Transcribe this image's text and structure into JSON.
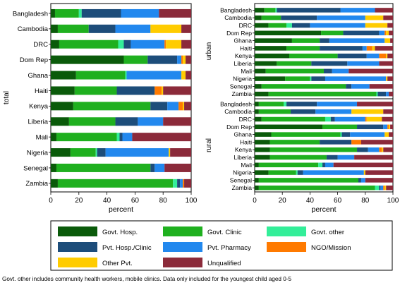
{
  "chart_data": {
    "type": "bar",
    "orientation": "horizontal",
    "stacked": true,
    "xlim": [
      0,
      100
    ],
    "xticks": [
      0,
      20,
      40,
      60,
      80,
      100
    ],
    "xlabel": "percent",
    "grid": false,
    "legend_position": "bottom",
    "categories_legend": [
      {
        "key": "govt_hosp",
        "label": "Govt. Hosp.",
        "color": "#0a5a0a"
      },
      {
        "key": "govt_clinic",
        "label": "Govt. Clinic",
        "color": "#1fb01f"
      },
      {
        "key": "govt_other",
        "label": "Govt. other",
        "color": "#33ee99"
      },
      {
        "key": "pvt_hosp",
        "label": "Pvt. Hosp./Clinic",
        "color": "#1d4d7a"
      },
      {
        "key": "pvt_pharmacy",
        "label": "Pvt. Pharmacy",
        "color": "#2288ee"
      },
      {
        "key": "ngo",
        "label": "NGO/Mission",
        "color": "#ff7a00"
      },
      {
        "key": "other_pvt",
        "label": "Other Pvt.",
        "color": "#ffcc00"
      },
      {
        "key": "unqualified",
        "label": "Unqualified",
        "color": "#8b2a3a"
      }
    ],
    "panels": [
      {
        "id": "total",
        "ylabel": "total",
        "rows": [
          {
            "country": "Bangladesh",
            "values": [
              3,
              17,
              2,
              28,
              27,
              0,
              0,
              23
            ]
          },
          {
            "country": "Cambodia",
            "values": [
              5,
              22,
              0,
              19,
              25,
              0,
              22,
              7
            ]
          },
          {
            "country": "DRC",
            "values": [
              6,
              42,
              4,
              5,
              24,
              1,
              11,
              7
            ]
          },
          {
            "country": "Dom Rep",
            "values": [
              52,
              17,
              0,
              21,
              3,
              1,
              2,
              4
            ]
          },
          {
            "country": "Ghana",
            "values": [
              18,
              35,
              1,
              0,
              39,
              0,
              3,
              4
            ]
          },
          {
            "country": "Haiti",
            "values": [
              17,
              30,
              0,
              27,
              0,
              5,
              1,
              20
            ]
          },
          {
            "country": "Kenya",
            "values": [
              16,
              55,
              0,
              12,
              8,
              3,
              1,
              5
            ]
          },
          {
            "country": "Liberia",
            "values": [
              13,
              33,
              0,
              16,
              18,
              0,
              0,
              20
            ]
          },
          {
            "country": "Mali",
            "values": [
              4,
              43,
              2,
              2,
              7,
              0,
              0,
              42
            ]
          },
          {
            "country": "Nigeria",
            "values": [
              14,
              18,
              1,
              6,
              45,
              0,
              1,
              15
            ]
          },
          {
            "country": "Senegal",
            "values": [
              4,
              67,
              0,
              3,
              7,
              0,
              0,
              19
            ]
          },
          {
            "country": "Zambia",
            "values": [
              5,
              82,
              3,
              2,
              2,
              1,
              0,
              5
            ]
          }
        ]
      },
      {
        "id": "urban",
        "ylabel": "urban",
        "rows": [
          {
            "country": "Bangladesh",
            "values": [
              7,
              8,
              1,
              46,
              25,
              0,
              0,
              13
            ]
          },
          {
            "country": "Cambodia",
            "values": [
              5,
              14,
              0,
              26,
              35,
              0,
              13,
              7
            ]
          },
          {
            "country": "DRC",
            "values": [
              10,
              13,
              4,
              13,
              40,
              0,
              16,
              4
            ]
          },
          {
            "country": "Dom Rep",
            "values": [
              48,
              16,
              0,
              26,
              4,
              1,
              2,
              3
            ]
          },
          {
            "country": "Ghana",
            "values": [
              27,
              20,
              0,
              7,
              40,
              0,
              4,
              2
            ]
          },
          {
            "country": "Haiti",
            "values": [
              23,
              24,
              0,
              31,
              3,
              4,
              2,
              13
            ]
          },
          {
            "country": "Kenya",
            "values": [
              25,
              35,
              0,
              21,
              9,
              5,
              1,
              4
            ]
          },
          {
            "country": "Liberia",
            "values": [
              16,
              25,
              0,
              26,
              23,
              0,
              0,
              10
            ]
          },
          {
            "country": "Mali",
            "values": [
              8,
              42,
              0,
              6,
              12,
              0,
              0,
              32
            ]
          },
          {
            "country": "Nigeria",
            "values": [
              22,
              18,
              1,
              10,
              44,
              0,
              1,
              4
            ]
          },
          {
            "country": "Senegal",
            "values": [
              5,
              61,
              0,
              4,
              13,
              0,
              0,
              17
            ]
          },
          {
            "country": "Zambia",
            "values": [
              10,
              78,
              1,
              6,
              2,
              0,
              0,
              3
            ]
          }
        ]
      },
      {
        "id": "rural",
        "ylabel": "rural",
        "rows": [
          {
            "country": "Bangladesh",
            "values": [
              3,
              18,
              2,
              22,
              29,
              0,
              0,
              26
            ]
          },
          {
            "country": "Cambodia",
            "values": [
              3,
              23,
              0,
              18,
              26,
              0,
              23,
              7
            ]
          },
          {
            "country": "DRC",
            "values": [
              5,
              46,
              4,
              3,
              22,
              1,
              11,
              8
            ]
          },
          {
            "country": "Dom Rep",
            "values": [
              49,
              25,
              0,
              19,
              3,
              1,
              1,
              2
            ]
          },
          {
            "country": "Ghana",
            "values": [
              12,
              50,
              1,
              6,
              25,
              0,
              3,
              3
            ]
          },
          {
            "country": "Haiti",
            "values": [
              11,
              36,
              0,
              23,
              0,
              7,
              0,
              23
            ]
          },
          {
            "country": "Kenya",
            "values": [
              11,
              63,
              0,
              8,
              8,
              2,
              1,
              7
            ]
          },
          {
            "country": "Liberia",
            "values": [
              11,
              41,
              0,
              8,
              12,
              0,
              0,
              28
            ]
          },
          {
            "country": "Mali",
            "values": [
              3,
              43,
              3,
              2,
              6,
              0,
              0,
              43
            ]
          },
          {
            "country": "Nigeria",
            "values": [
              10,
              20,
              1,
              4,
              44,
              0,
              1,
              20
            ]
          },
          {
            "country": "Senegal",
            "values": [
              3,
              72,
              0,
              2,
              3,
              0,
              0,
              20
            ]
          },
          {
            "country": "Zambia",
            "values": [
              3,
              84,
              3,
              1,
              2,
              1,
              1,
              5
            ]
          }
        ]
      }
    ]
  },
  "footnote": "Govt. other includes community health workers, mobile clinics. Data only included for the youngest child aged 0-5"
}
